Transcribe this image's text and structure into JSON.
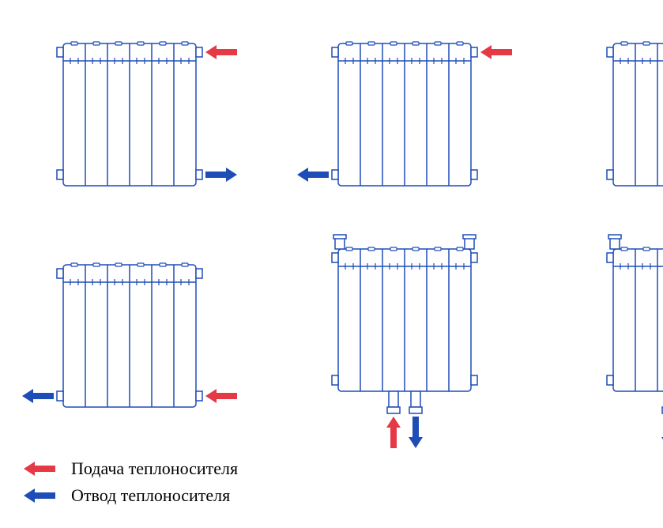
{
  "colors": {
    "supply": "#e63946",
    "return": "#1e4db7",
    "outline": "#1e4db7",
    "radiator_fill": "#ffffff",
    "radiator_stroke": "#1e4db7",
    "valve_fill": "#ffffff"
  },
  "radiator": {
    "sections": 6,
    "section_width": 28,
    "height": 180,
    "top_header_height": 22,
    "stroke_width": 1.5
  },
  "arrow": {
    "length": 40,
    "width": 8,
    "head_length": 14,
    "head_width": 18
  },
  "configurations": [
    {
      "id": "cfg1",
      "has_valves": false,
      "has_bottom_nipples": false,
      "arrows": [
        {
          "side": "right",
          "y_pos": "top",
          "direction": "left",
          "type": "supply"
        },
        {
          "side": "right",
          "y_pos": "bottom",
          "direction": "right",
          "type": "return"
        }
      ]
    },
    {
      "id": "cfg2",
      "has_valves": false,
      "has_bottom_nipples": false,
      "arrows": [
        {
          "side": "right",
          "y_pos": "top",
          "direction": "left",
          "type": "supply"
        },
        {
          "side": "left",
          "y_pos": "bottom",
          "direction": "left",
          "type": "return"
        }
      ]
    },
    {
      "id": "cfg3",
      "has_valves": false,
      "has_bottom_nipples": false,
      "arrows": [
        {
          "side": "right",
          "y_pos": "top",
          "direction": "right",
          "type": "return"
        },
        {
          "side": "right",
          "y_pos": "bottom",
          "direction": "left",
          "type": "supply"
        }
      ]
    },
    {
      "id": "cfg4",
      "has_valves": false,
      "has_bottom_nipples": false,
      "arrows": [
        {
          "side": "right",
          "y_pos": "bottom",
          "direction": "left",
          "type": "supply"
        },
        {
          "side": "left",
          "y_pos": "bottom",
          "direction": "left",
          "type": "return"
        }
      ]
    },
    {
      "id": "cfg5",
      "has_valves": true,
      "has_bottom_nipples": true,
      "arrows": [
        {
          "side": "bottom",
          "x_pos": "nipple_left",
          "direction": "up",
          "type": "supply"
        },
        {
          "side": "bottom",
          "x_pos": "nipple_right",
          "direction": "down",
          "type": "return"
        }
      ]
    },
    {
      "id": "cfg6",
      "has_valves": true,
      "has_bottom_nipples": true,
      "arrows": [
        {
          "side": "bottom",
          "x_pos": "nipple_left",
          "direction": "down",
          "type": "return"
        },
        {
          "side": "bottom",
          "x_pos": "nipple_right",
          "direction": "up",
          "type": "supply"
        }
      ]
    }
  ],
  "legend": {
    "supply_label": "Подача теплоносителя",
    "return_label": "Отвод теплоносителя"
  }
}
